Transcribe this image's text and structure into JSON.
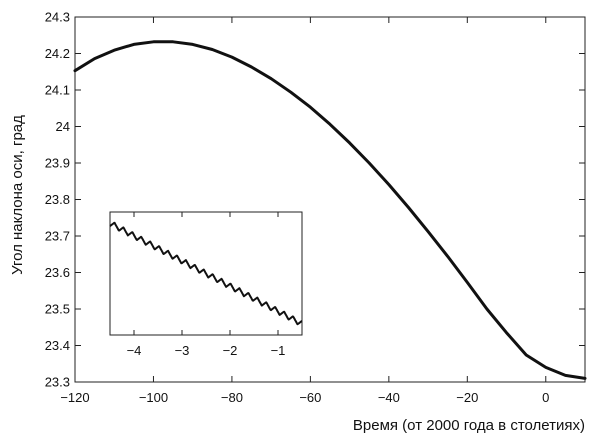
{
  "chart_data": {
    "type": "line",
    "title": "",
    "xlabel": "Время (от 2000 года в столетиях)",
    "ylabel": "Угол наклона оси, град",
    "xlim": [
      -120,
      10
    ],
    "ylim": [
      23.3,
      24.3
    ],
    "xticks": [
      -120,
      -100,
      -80,
      -60,
      -40,
      -20,
      0
    ],
    "xtick_labels": [
      "−120",
      "−100",
      "−80",
      "−60",
      "−40",
      "−20",
      "0"
    ],
    "yticks": [
      23.3,
      23.4,
      23.5,
      23.6,
      23.7,
      23.8,
      23.9,
      24,
      24.1,
      24.2,
      24.3
    ],
    "ytick_labels": [
      "23.3",
      "23.4",
      "23.5",
      "23.6",
      "23.7",
      "23.8",
      "23.9",
      "24",
      "24.1",
      "24.2",
      "24.3"
    ],
    "grid": false,
    "legend": "none",
    "line_color": "#111111",
    "series": [
      {
        "x": [
          -120,
          -115,
          -110,
          -105,
          -100,
          -95,
          -90,
          -85,
          -80,
          -75,
          -70,
          -65,
          -60,
          -55,
          -50,
          -45,
          -40,
          -35,
          -30,
          -25,
          -20,
          -15,
          -10,
          -5,
          0,
          5,
          10
        ],
        "y": [
          24.153,
          24.186,
          24.209,
          24.225,
          24.232,
          24.232,
          24.225,
          24.211,
          24.19,
          24.163,
          24.131,
          24.094,
          24.053,
          24.006,
          23.955,
          23.9,
          23.841,
          23.778,
          23.712,
          23.644,
          23.573,
          23.5,
          23.435,
          23.374,
          23.34,
          23.318,
          23.31
        ]
      }
    ],
    "inset": {
      "type": "line",
      "xlim": [
        -4.5,
        -0.5
      ],
      "xticks": [
        -4,
        -3,
        -2,
        -1
      ],
      "xtick_labels": [
        "−4",
        "−3",
        "−2",
        "−1"
      ],
      "y_range": [
        23.44,
        23.68
      ],
      "trend_start": [
        -4.5,
        23.665
      ],
      "trend_end": [
        -0.5,
        23.455
      ],
      "oscillation_period": 0.186,
      "oscillation_amplitude": 0.006,
      "line_color": "#111111"
    }
  }
}
